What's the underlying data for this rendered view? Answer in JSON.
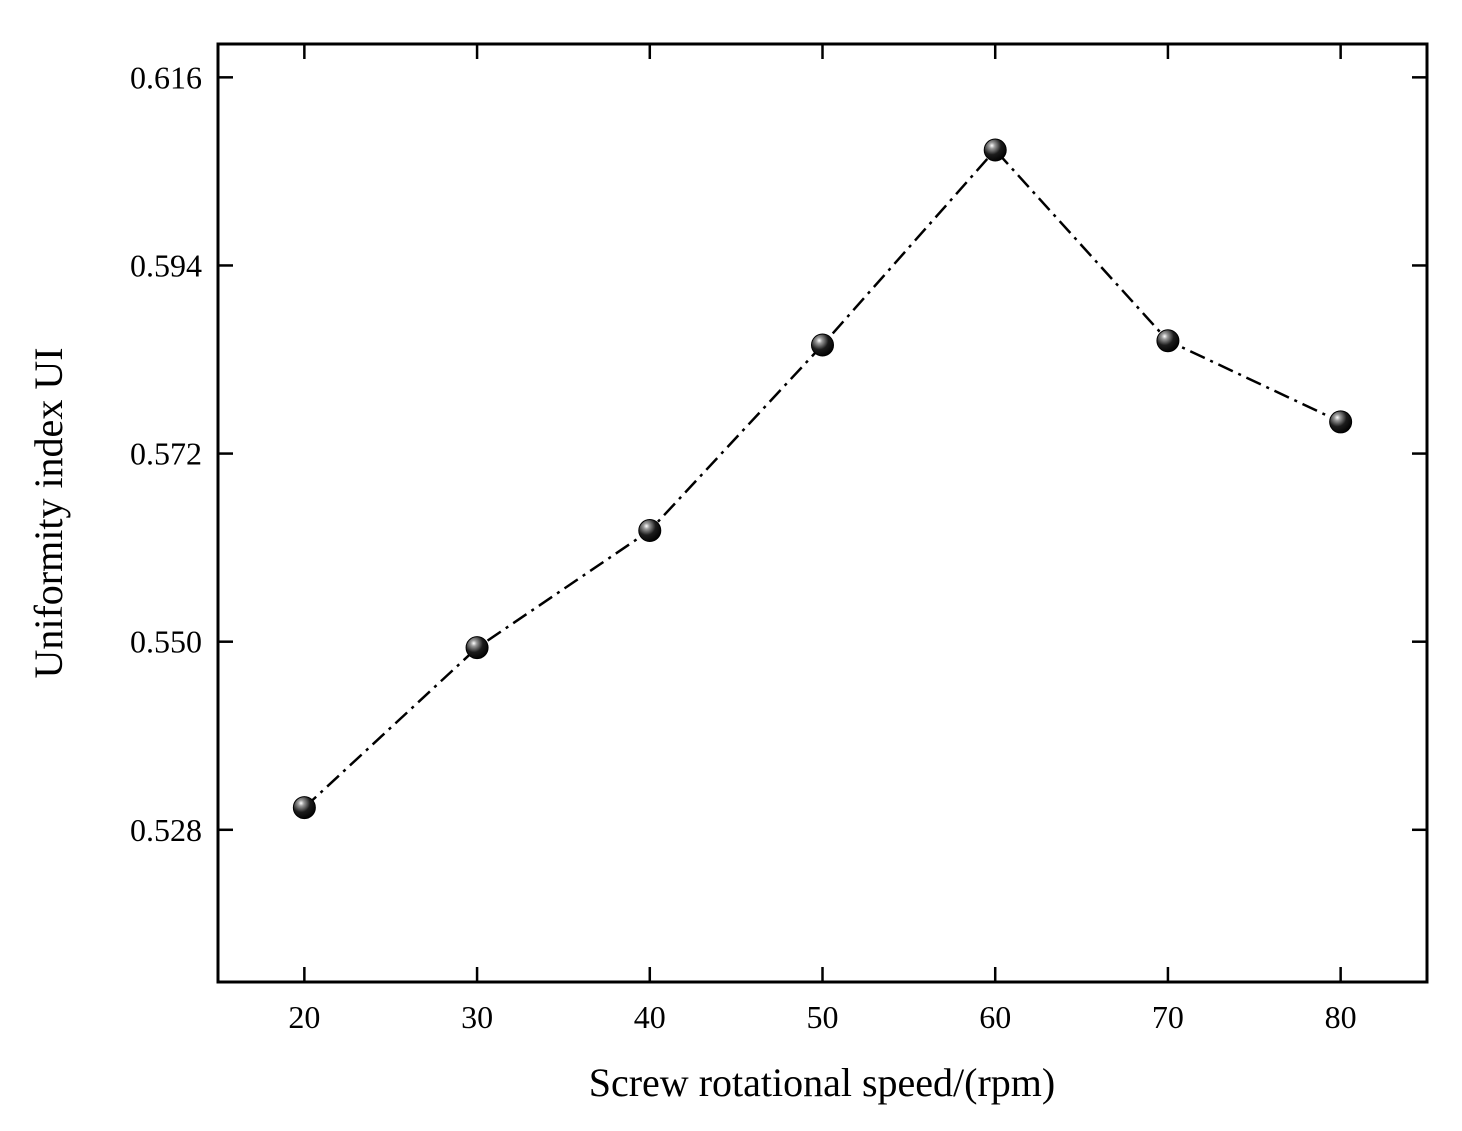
{
  "chart_data": {
    "type": "line",
    "title": "",
    "xlabel": "Screw rotational speed/(rpm)",
    "ylabel": "Uniformity index UI",
    "xlim": [
      15,
      85
    ],
    "ylim": [
      0.5102,
      0.6199
    ],
    "xticks": [
      20,
      30,
      40,
      50,
      60,
      70,
      80
    ],
    "xtick_labels": [
      "20",
      "30",
      "40",
      "50",
      "60",
      "70",
      "80"
    ],
    "yticks": [
      0.528,
      0.55,
      0.572,
      0.594,
      0.616
    ],
    "ytick_labels": [
      "0.528",
      "0.550",
      "0.572",
      "0.594",
      "0.616"
    ],
    "grid": false,
    "series": [
      {
        "name": "Uniformity index UI",
        "line_style": "dash-dot",
        "marker": "sphere",
        "color": "#000000",
        "x": [
          20,
          30,
          40,
          50,
          60,
          70,
          80
        ],
        "y": [
          0.5306,
          0.5493,
          0.563,
          0.5847,
          0.6075,
          0.5852,
          0.5757
        ]
      }
    ]
  }
}
